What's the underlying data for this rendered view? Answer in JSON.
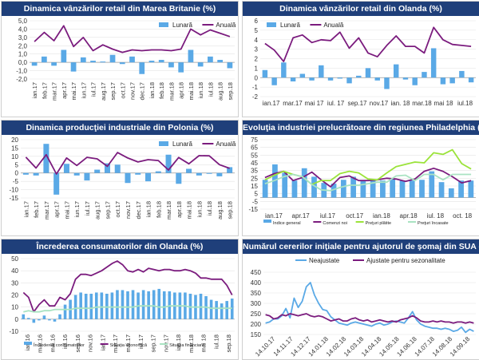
{
  "chart_data": [
    {
      "id": "uk",
      "type": "bar+line",
      "title": "Dinamica vânzărilor retail din Marea Britanie (%)",
      "ylim": [
        -2.0,
        5.0
      ],
      "yticks": [
        "5,0",
        "4,0",
        "3,0",
        "2,0",
        "1,0",
        "0,0",
        "-1,0",
        "-2,0"
      ],
      "ytick_values": [
        5,
        4,
        3,
        2,
        1,
        0,
        -1,
        -2
      ],
      "xlabels": [
        "ian.17",
        "feb.17",
        "mar.17",
        "apr.17",
        "mai.17",
        "iun.17",
        "iul.17",
        "aug.17",
        "sep.17",
        "oct.17",
        "nov.17",
        "dec.17",
        "ian.18",
        "feb.18",
        "mar.18",
        "apr.18",
        "mai.18",
        "iun.18",
        "iul.18",
        "aug.18",
        "sep.18"
      ],
      "legend": "top-right",
      "series": [
        {
          "name": "Lunară",
          "kind": "bar",
          "color": "#5aa9e6",
          "values": [
            -0.4,
            0.7,
            -0.4,
            1.5,
            -1.1,
            0.6,
            0.2,
            0.1,
            0.9,
            -0.2,
            0.7,
            -1.4,
            0.2,
            0.3,
            -0.6,
            -1.2,
            1.5,
            -0.5,
            0.7,
            0.3,
            -0.7
          ]
        },
        {
          "name": "Anuală",
          "kind": "line",
          "color": "#7b1c7e",
          "values": [
            2.5,
            3.6,
            2.6,
            4.4,
            1.9,
            3.0,
            1.4,
            2.1,
            1.6,
            1.2,
            1.5,
            1.4,
            1.5,
            1.5,
            1.4,
            1.6,
            4.0,
            3.3,
            3.9,
            3.5,
            3.1
          ]
        }
      ]
    },
    {
      "id": "nl",
      "type": "bar+line",
      "title": "Dinamica vânzărilor retail din Olanda (%)",
      "ylim": [
        -2,
        6
      ],
      "yticks": [
        "6",
        "5",
        "4",
        "3",
        "2",
        "1",
        "0",
        "-1",
        "-2"
      ],
      "ytick_values": [
        6,
        5,
        4,
        3,
        2,
        1,
        0,
        -1,
        -2
      ],
      "xlabels": [
        "ian.17",
        "mar.17",
        "mai 17",
        "iul. 17",
        "sep.17",
        "nov.17",
        "ian. 18",
        "mar.18",
        "mai 18",
        "iul.18"
      ],
      "legend": "top-left",
      "series": [
        {
          "name": "Lunară",
          "kind": "bar",
          "color": "#5aa9e6",
          "values": [
            0.8,
            -0.8,
            1.6,
            -0.4,
            0.4,
            -0.3,
            1.3,
            -0.3,
            -0.1,
            -0.6,
            0.2,
            1.0,
            -0.3,
            -1.2,
            1.4,
            -0.2,
            -0.8,
            0.6,
            3.1,
            -0.7,
            -0.6,
            0.7,
            -0.5
          ]
        },
        {
          "name": "Anuală",
          "kind": "line",
          "color": "#7b1c7e",
          "values": [
            3.6,
            2.9,
            1.7,
            4.2,
            4.5,
            3.7,
            4.0,
            3.9,
            4.8,
            3.1,
            4.2,
            2.6,
            2.2,
            3.4,
            4.4,
            3.3,
            3.3,
            2.6,
            5.3,
            4.0,
            3.5,
            3.4,
            3.3
          ]
        }
      ]
    },
    {
      "id": "pl",
      "type": "bar+line",
      "title": "Dinamica producţiei industriale din Polonia (%)",
      "ylim": [
        -15,
        20
      ],
      "yticks": [
        "20",
        "15",
        "10",
        "5",
        "0",
        "-5",
        "-10",
        "-15"
      ],
      "ytick_values": [
        20,
        15,
        10,
        5,
        0,
        -5,
        -10,
        -15
      ],
      "xlabels": [
        "ian.17",
        "feb.17",
        "mar.17",
        "apr.17",
        "mai.17",
        "iun.17",
        "iul.17",
        "aug.17",
        "sep.17",
        "oct.17",
        "nov.17",
        "dec.17",
        "ian.18",
        "feb.18",
        "mar.18",
        "apr.18",
        "mai.18",
        "iun.18",
        "iul.18",
        "aug.18",
        "sep.18"
      ],
      "legend": "top-right",
      "series": [
        {
          "name": "Lunară",
          "kind": "bar",
          "color": "#5aa9e6",
          "values": [
            -1.0,
            -1.5,
            17.5,
            -13.0,
            5.5,
            -1.5,
            -4.5,
            2.0,
            5.8,
            5.0,
            -6.0,
            -1.0,
            -5.0,
            1.0,
            11.0,
            -6.5,
            2.5,
            -1.5,
            -0.5,
            -2.0,
            3.5
          ]
        },
        {
          "name": "Anuală",
          "kind": "line",
          "color": "#7b1c7e",
          "values": [
            9.5,
            3.0,
            11.0,
            -0.6,
            9.0,
            4.5,
            9.4,
            8.5,
            4.0,
            12.3,
            9.0,
            6.6,
            8.0,
            7.5,
            1.8,
            9.3,
            5.5,
            10.4,
            10.3,
            5.0,
            2.8
          ]
        }
      ]
    },
    {
      "id": "phl",
      "type": "bar+line",
      "title": "Evoluţia industriei prelucrătoare din regiunea Philadelphia (%)",
      "ylim": [
        -15,
        75
      ],
      "yticks": [
        "75",
        "65",
        "55",
        "45",
        "35",
        "25",
        "15",
        "5",
        "-5",
        "-15"
      ],
      "ytick_values": [
        75,
        65,
        55,
        45,
        35,
        25,
        15,
        5,
        -5,
        -15
      ],
      "xlabels": [
        "ian.17",
        "apr.17",
        "iul.17",
        "oct.17",
        "ian.18",
        "apr.18",
        "iul. 18",
        "oct. 18"
      ],
      "legend": "bottom",
      "series": [
        {
          "name": "Indice general",
          "kind": "bar",
          "color": "#5aa9e6",
          "values": [
            23,
            43,
            32,
            22,
            38,
            27,
            19,
            18,
            23,
            27,
            22,
            22,
            22,
            25,
            22,
            22,
            23,
            34,
            20,
            12,
            22,
            22
          ]
        },
        {
          "name": "Comenzi noi",
          "kind": "line",
          "color": "#7b1c7e",
          "values": [
            26,
            31,
            34,
            22,
            26,
            33,
            23,
            14,
            26,
            28,
            22,
            22,
            23,
            25,
            24,
            21,
            24,
            34,
            38,
            34,
            27,
            19,
            22
          ]
        },
        {
          "name": "Preţuri plătite",
          "kind": "line",
          "color": "#9be33a",
          "values": [
            23,
            29,
            34,
            30,
            27,
            17,
            22,
            22,
            31,
            34,
            32,
            24,
            23,
            32,
            40,
            43,
            46,
            45,
            58,
            56,
            62,
            44,
            37
          ]
        },
        {
          "name": "Preţuri încasate",
          "kind": "line",
          "color": "#a9e3c2",
          "values": [
            18,
            22,
            27,
            30,
            27,
            17,
            10,
            9,
            13,
            16,
            16,
            18,
            20,
            20,
            28,
            29,
            22,
            30,
            30,
            23,
            30,
            30,
            30
          ]
        }
      ]
    },
    {
      "id": "nl-cons",
      "type": "bar+line",
      "title": "Încrederea consumatorilor din Olanda (%)",
      "ylim": [
        -10,
        50
      ],
      "yticks": [
        "50",
        "40",
        "30",
        "20",
        "10",
        "0",
        "-10"
      ],
      "ytick_values": [
        50,
        40,
        30,
        20,
        10,
        0,
        -10
      ],
      "xlabels": [
        "ian.16",
        "mar.16",
        "mai.16",
        "iul.16",
        "sep.16",
        "nov.16",
        "ian.17",
        "mar.17",
        "mai.17",
        "iul.17",
        "sep.17",
        "nov.17",
        "ian.18",
        "mar.18",
        "mai 18",
        "iul.18",
        "sep.18"
      ],
      "legend": "bottom",
      "series": [
        {
          "name": "Încrederea consumatorilor",
          "kind": "bar",
          "color": "#5aa9e6",
          "values": [
            4,
            1,
            -3,
            -1,
            3,
            -1,
            -2,
            4,
            12,
            16,
            20,
            22,
            21,
            21,
            22,
            22,
            21,
            22,
            24,
            24,
            23,
            24,
            22,
            24,
            23,
            24,
            25,
            23,
            23,
            22,
            22,
            22,
            21,
            20,
            21,
            19,
            16,
            15,
            13,
            15,
            17
          ]
        },
        {
          "name": "Situaţia economică",
          "kind": "line",
          "color": "#7b1c7e",
          "values": [
            22,
            18,
            6,
            12,
            16,
            11,
            11,
            18,
            16,
            21,
            33,
            37,
            37,
            36,
            38,
            40,
            43,
            46,
            48,
            45,
            40,
            39,
            41,
            39,
            42,
            41,
            40,
            41,
            41,
            40,
            40,
            41,
            40,
            38,
            34,
            34,
            33,
            33,
            33,
            28,
            20
          ]
        },
        {
          "name": "Situaţia financiară",
          "kind": "line",
          "color": "#a9e3c2",
          "values": [
            6,
            7,
            6,
            6,
            7,
            7,
            8,
            8,
            8,
            8,
            9,
            9,
            9,
            9,
            10,
            10,
            10,
            10,
            10,
            10,
            10,
            10,
            11,
            11,
            11,
            11,
            10,
            10,
            11,
            11,
            11,
            11,
            10,
            10,
            10,
            10,
            9,
            9,
            9,
            9,
            9
          ]
        }
      ]
    },
    {
      "id": "us-claims",
      "type": "line",
      "title": "Numărul cererilor iniţiale pentru ajutorul de şomaj din SUA (mii)",
      "ylim": [
        150,
        450
      ],
      "yticks": [
        "450",
        "400",
        "350",
        "300",
        "250",
        "200",
        "150"
      ],
      "ytick_values": [
        450,
        400,
        350,
        300,
        250,
        200,
        150
      ],
      "xlabels": [
        "14.10.17",
        "14.11.17",
        "14.12.17",
        "14.01.18",
        "14.02.18",
        "14.03.18",
        "14.04.18",
        "14.05.18",
        "14.06.18",
        "14.07.18",
        "14.08.18",
        "14.09.18"
      ],
      "legend": "top",
      "series": [
        {
          "name": "Neajustate",
          "kind": "line",
          "color": "#5aa9e6",
          "values": [
            205,
            210,
            225,
            225,
            240,
            275,
            230,
            325,
            280,
            310,
            380,
            400,
            340,
            300,
            270,
            265,
            235,
            220,
            205,
            200,
            195,
            205,
            210,
            205,
            200,
            195,
            190,
            200,
            205,
            195,
            200,
            210,
            215,
            210,
            205,
            230,
            260,
            220,
            200,
            190,
            185,
            180,
            180,
            175,
            180,
            175,
            165,
            170,
            185,
            160,
            175,
            165
          ]
        },
        {
          "name": "Ajustate pentru sezonalitate",
          "kind": "line",
          "color": "#7b1c7e",
          "values": [
            245,
            240,
            225,
            230,
            245,
            240,
            250,
            245,
            240,
            245,
            250,
            240,
            235,
            240,
            235,
            225,
            215,
            220,
            225,
            215,
            215,
            225,
            230,
            220,
            215,
            220,
            210,
            215,
            220,
            215,
            210,
            215,
            210,
            220,
            225,
            230,
            240,
            230,
            215,
            210,
            210,
            215,
            210,
            215,
            210,
            210,
            205,
            210,
            210,
            205,
            210,
            205
          ]
        }
      ]
    }
  ]
}
